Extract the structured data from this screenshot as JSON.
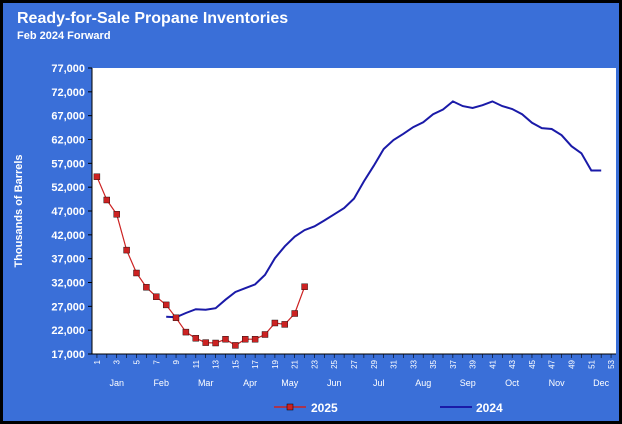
{
  "title": "Ready-for-Sale Propane Inventories",
  "subtitle": "Feb 2024 Forward",
  "colors": {
    "background": "#3a6fd8",
    "plot": "#ffffff",
    "series_2025": "#cc2222",
    "series_2024": "#1a1aa8"
  },
  "chart_data": {
    "type": "line",
    "title": "Ready-for-Sale Propane Inventories",
    "subtitle": "Feb 2024 Forward",
    "ylabel": "Thousands of Barrels",
    "xlabel": "",
    "ylim": [
      17000,
      77000
    ],
    "y_ticks": [
      "17,000",
      "22,000",
      "27,000",
      "32,000",
      "37,000",
      "42,000",
      "47,000",
      "52,000",
      "57,000",
      "62,000",
      "67,000",
      "72,000",
      "77,000"
    ],
    "x_ticks": [
      "1",
      "3",
      "5",
      "7",
      "9",
      "11",
      "13",
      "15",
      "17",
      "19",
      "21",
      "23",
      "25",
      "27",
      "29",
      "31",
      "33",
      "35",
      "37",
      "39",
      "41",
      "43",
      "45",
      "47",
      "49",
      "51",
      "53"
    ],
    "months": [
      {
        "label": "Jan",
        "week": 3
      },
      {
        "label": "Feb",
        "week": 7.5
      },
      {
        "label": "Mar",
        "week": 12
      },
      {
        "label": "Apr",
        "week": 16.5
      },
      {
        "label": "May",
        "week": 20.5
      },
      {
        "label": "Jun",
        "week": 25
      },
      {
        "label": "Jul",
        "week": 29.5
      },
      {
        "label": "Aug",
        "week": 34
      },
      {
        "label": "Sep",
        "week": 38.5
      },
      {
        "label": "Oct",
        "week": 43
      },
      {
        "label": "Nov",
        "week": 47.5
      },
      {
        "label": "Dec",
        "week": 52
      }
    ],
    "legend_placement": "bottom",
    "series": [
      {
        "name": "2025",
        "color": "#cc2222",
        "marker": "square",
        "x": [
          1,
          2,
          3,
          4,
          5,
          6,
          7,
          8,
          9,
          10,
          11,
          12,
          13,
          14,
          15,
          16,
          17,
          18,
          19,
          20,
          21,
          22
        ],
        "values": [
          54200,
          49300,
          46300,
          38800,
          34000,
          31000,
          29000,
          27300,
          24600,
          21600,
          20300,
          19400,
          19300,
          20100,
          18800,
          20100,
          20100,
          21100,
          23500,
          23200,
          25500,
          31100
        ]
      },
      {
        "name": "2024",
        "color": "#1a1aa8",
        "x": [
          8,
          9,
          10,
          11,
          12,
          13,
          14,
          15,
          16,
          17,
          18,
          19,
          20,
          21,
          22,
          23,
          24,
          25,
          26,
          27,
          28,
          29,
          30,
          31,
          32,
          33,
          34,
          35,
          36,
          37,
          38,
          39,
          40,
          41,
          42,
          43,
          44,
          45,
          46,
          47,
          48,
          49,
          50,
          51,
          52
        ],
        "values": [
          24800,
          24700,
          25600,
          26400,
          26300,
          26600,
          28400,
          30000,
          30800,
          31600,
          33600,
          37100,
          39600,
          41600,
          43000,
          43800,
          45000,
          46300,
          47600,
          49600,
          53200,
          56500,
          60000,
          61900,
          63200,
          64600,
          65600,
          67300,
          68300,
          70000,
          69000,
          68600,
          69200,
          70000,
          69000,
          68400,
          67300,
          65500,
          64400,
          64200,
          62900,
          60600,
          59100,
          55500,
          55500
        ]
      }
    ]
  }
}
